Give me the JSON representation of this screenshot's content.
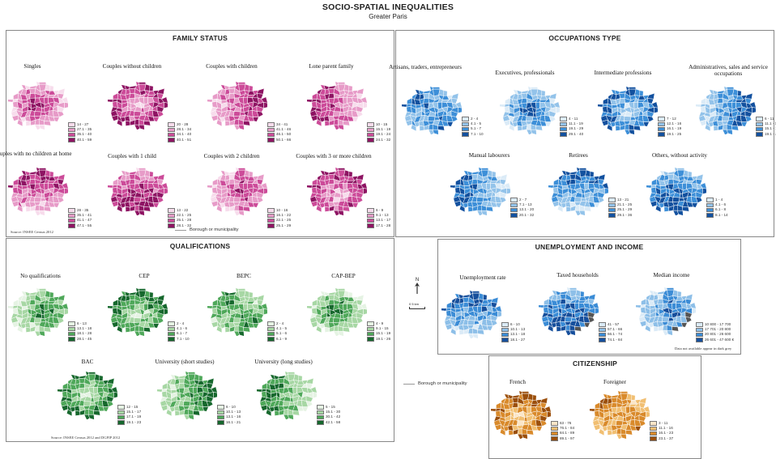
{
  "header": {
    "title": "SOCIO-SPATIAL INEQUALITIES",
    "subtitle": "Greater Paris"
  },
  "colors": {
    "family": [
      "#f7dcec",
      "#e79bc8",
      "#cc4b99",
      "#8e1463"
    ],
    "occupation": [
      "#dbebf7",
      "#93c3ea",
      "#3d8fd8",
      "#13519f"
    ],
    "qualification": [
      "#e5f3e3",
      "#a7d7a4",
      "#4fa85a",
      "#16682d"
    ],
    "unemployment": [
      "#dbebf7",
      "#8dbfe8",
      "#3b8cd6",
      "#164f9c"
    ],
    "citizenship": [
      "#fbe6c8",
      "#f1bf72",
      "#d98a2b",
      "#9b4f0c"
    ],
    "income": [
      "#dbebf7",
      "#8dbfe8",
      "#3b8cd6",
      "#164f9c"
    ],
    "no_data": "#555555"
  },
  "family_status": {
    "title": "FAMILY STATUS",
    "maps": [
      {
        "title": "Singles",
        "legend": [
          "14 - 27",
          "27.1 - 35",
          "35.1 - 40",
          "40.1 - 59"
        ]
      },
      {
        "title": "Couples without children",
        "legend": [
          "20 - 28",
          "28.1 - 34",
          "34.1 - 40",
          "40.1 - 51"
        ]
      },
      {
        "title": "Couples with children",
        "legend": [
          "34 - 41",
          "41.1 - 46",
          "46.1 - 50",
          "50.1 - 66"
        ]
      },
      {
        "title": "Lone parent family",
        "legend": [
          "10 - 15",
          "15.1 - 19",
          "19.1 - 24",
          "24.1 - 32"
        ]
      },
      {
        "title": "Couples with no children at home",
        "legend": [
          "28 - 35",
          "35.1 - 41",
          "41.1 - 47",
          "47.1 - 55"
        ]
      },
      {
        "title": "Couples with 1 child",
        "legend": [
          "13 - 22",
          "22.1 - 25",
          "25.1 - 28",
          "28.1 - 32"
        ]
      },
      {
        "title": "Couples with 2 children",
        "legend": [
          "10 - 16",
          "16.1 - 22",
          "22.1 - 25",
          "25.1 - 29"
        ]
      },
      {
        "title": "Couples with 3 or more children",
        "legend": [
          "6 - 9",
          "9.1 - 13",
          "13.1 - 17",
          "17.1 - 28"
        ]
      }
    ],
    "source": "Source: INSEE Census 2012",
    "borough_label": "Borough or municipality"
  },
  "occupations": {
    "title": "OCCUPATIONS TYPE",
    "maps": [
      {
        "title": "Artisans, traders, entrepreneurs",
        "legend": [
          "2 - 4",
          "4.1 - 5",
          "5.1 - 7",
          "7.1 - 10"
        ]
      },
      {
        "title": "Executives, professionals",
        "legend": [
          "4 - 11",
          "11.1 - 19",
          "19.1 - 29",
          "29.1 - 40"
        ]
      },
      {
        "title": "Intermediate professions",
        "legend": [
          "7 - 12",
          "12.1 - 16",
          "16.1 - 19",
          "19.1 - 25"
        ]
      },
      {
        "title": "Administratives, sales and service occupations",
        "legend": [
          "6 - 11",
          "11.1 - 15",
          "15.1 - 19",
          "19.1 - 25"
        ]
      },
      {
        "title": "Manual labourers",
        "legend": [
          "2 - 7",
          "7.1 - 13",
          "13.1 - 20",
          "20.1 - 32"
        ]
      },
      {
        "title": "Retirees",
        "legend": [
          "13 - 21",
          "21.1 - 25",
          "25.1 - 29",
          "29.1 - 36"
        ]
      },
      {
        "title": "Others, without activity",
        "legend": [
          "1 - 4",
          "4.1 - 6",
          "6.1 - 8",
          "8.1 - 14"
        ]
      }
    ]
  },
  "qualifications": {
    "title": "QUALIFICATIONS",
    "maps": [
      {
        "title": "No qualifications",
        "legend": [
          "6 - 13",
          "13.1 - 18",
          "18.1 - 28",
          "28.1 - 45"
        ]
      },
      {
        "title": "CEP",
        "legend": [
          "2 - 4",
          "4.1 - 6",
          "6.1 - 7",
          "7.1 - 10"
        ]
      },
      {
        "title": "BEPC",
        "legend": [
          "2 - 4",
          "4.1 - 5",
          "5.1 - 6",
          "6.1 - 9"
        ]
      },
      {
        "title": "CAP-BEP",
        "legend": [
          "4 - 9",
          "9.1 - 15",
          "15.1 - 19",
          "19.1 - 26"
        ]
      },
      {
        "title": "BAC",
        "legend": [
          "12 - 15",
          "15.1 - 17",
          "17.1 - 19",
          "19.1 - 23"
        ]
      },
      {
        "title": "University (short studies)",
        "legend": [
          "6 - 10",
          "10.1 - 13",
          "13.1 - 16",
          "16.1 - 21"
        ]
      },
      {
        "title": "University (long studies)",
        "legend": [
          "5 - 15",
          "15.1 - 30",
          "30.1 - 42",
          "42.1 - 58"
        ]
      }
    ],
    "borough_label": "Borough or municipality",
    "source": "Source: INSEE Census 2012 and DGFIP 2012"
  },
  "unemployment_income": {
    "title": "UNEMPLOYMENT AND INCOME",
    "maps": [
      {
        "title": "Unemployment rate",
        "legend": [
          "6 - 10",
          "10.1 - 13",
          "13.1 - 18",
          "18.1 - 27"
        ]
      },
      {
        "title": "Taxed households",
        "legend": [
          "41 - 57",
          "57.1 - 66",
          "66.1 - 74",
          "74.1 - 84"
        ]
      },
      {
        "title": "Median income",
        "legend": [
          "10 800 - 17 700",
          "17 701 - 20 800",
          "20 801 - 26 600",
          "26 601 - 47 600 €"
        ]
      }
    ],
    "note": "Data not available appear in dark grey",
    "north": "N",
    "scale": "0 5 km"
  },
  "citizenship": {
    "title": "CITIZENSHIP",
    "maps": [
      {
        "title": "French",
        "legend": [
          "63 - 76",
          "76.1 - 84",
          "84.1 - 89",
          "89.1 - 97"
        ]
      },
      {
        "title": "Foreigner",
        "legend": [
          "3 - 11",
          "11.1 - 16",
          "16.1 - 23",
          "23.1 - 37"
        ]
      }
    ]
  }
}
